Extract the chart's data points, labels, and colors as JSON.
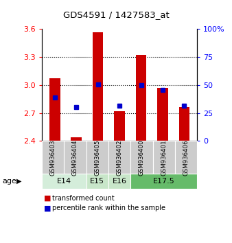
{
  "title": "GDS4591 / 1427583_at",
  "samples": [
    "GSM936403",
    "GSM936404",
    "GSM936405",
    "GSM936402",
    "GSM936400",
    "GSM936401",
    "GSM936406"
  ],
  "red_values": [
    3.07,
    2.44,
    3.57,
    2.72,
    3.32,
    2.97,
    2.76
  ],
  "blue_values": [
    2.87,
    2.76,
    3.01,
    2.78,
    3.0,
    2.95,
    2.78
  ],
  "ylim_left": [
    2.4,
    3.6
  ],
  "ylim_right": [
    0,
    100
  ],
  "yticks_left": [
    2.4,
    2.7,
    3.0,
    3.3,
    3.6
  ],
  "yticks_right": [
    0,
    25,
    50,
    75,
    100
  ],
  "ytick_labels_right": [
    "0",
    "25",
    "50",
    "75",
    "100%"
  ],
  "age_groups": [
    {
      "label": "E14",
      "samples": [
        "GSM936403",
        "GSM936404"
      ],
      "color": "#d4edda"
    },
    {
      "label": "E15",
      "samples": [
        "GSM936405"
      ],
      "color": "#c8e6c9"
    },
    {
      "label": "E16",
      "samples": [
        "GSM936402"
      ],
      "color": "#c8e6c9"
    },
    {
      "label": "E17.5",
      "samples": [
        "GSM936400",
        "GSM936401",
        "GSM936406"
      ],
      "color": "#66bb6a"
    }
  ],
  "bar_color": "#cc0000",
  "marker_color": "#0000cc",
  "bar_width": 0.5,
  "baseline": 2.4,
  "background_color": "#ffffff",
  "plot_bg_color": "#ffffff",
  "sample_bg_color": "#cccccc",
  "gridline_values": [
    2.7,
    3.0,
    3.3
  ],
  "legend_items": [
    "transformed count",
    "percentile rank within the sample"
  ]
}
